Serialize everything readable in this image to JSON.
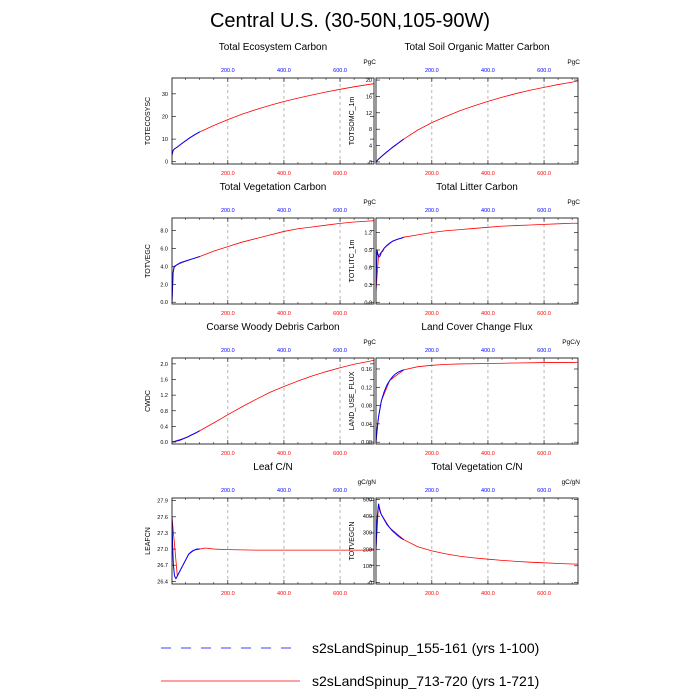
{
  "figure": {
    "title": "Central U.S. (30-50N,105-90W)",
    "series_colors": {
      "short": "#0000ff",
      "long": "#ff0000"
    },
    "legend": [
      {
        "name": "s2sLandSpinup_155-161 (yrs 1-100)",
        "color": "#0000ff",
        "style": "dashed"
      },
      {
        "name": "s2sLandSpinup_713-720 (yrs 1-721)",
        "color": "#ff0000",
        "style": "solid"
      }
    ]
  },
  "chart_data": [
    {
      "type": "line",
      "title": "Total Ecosystem Carbon",
      "ylabel": "TOTECOSYSC",
      "unit": "PgC",
      "xlim": [
        1,
        721
      ],
      "ylim": [
        -1,
        37
      ],
      "yticks": [
        "0",
        "10",
        "20",
        "30"
      ],
      "xticks_bottom": [
        "200.0",
        "400.0",
        "600.0"
      ],
      "xticks_top": [
        "200.0",
        "400.0",
        "600.0"
      ],
      "series": [
        {
          "x": [
            1,
            5,
            10,
            20,
            30,
            40,
            50,
            60,
            70,
            80,
            90,
            100
          ],
          "y": [
            3.0,
            5.0,
            5.7,
            6.5,
            7.5,
            8.4,
            9.3,
            10.2,
            11.0,
            11.8,
            12.5,
            13.2
          ]
        },
        {
          "x": [
            1,
            5,
            10,
            20,
            30,
            40,
            50,
            60,
            70,
            80,
            90,
            100,
            150,
            200,
            250,
            300,
            350,
            400,
            450,
            500,
            550,
            600,
            650,
            700,
            721
          ],
          "y": [
            3.0,
            5.0,
            5.7,
            6.5,
            7.5,
            8.4,
            9.3,
            10.2,
            11.0,
            11.8,
            12.5,
            13.2,
            16.0,
            18.6,
            21.0,
            23.0,
            24.9,
            26.6,
            28.1,
            29.5,
            30.8,
            32.0,
            33.1,
            34.1,
            34.5
          ]
        }
      ]
    },
    {
      "type": "line",
      "title": "Total Soil Organic Matter Carbon",
      "ylabel": "TOTSOMC_1m",
      "unit": "PgC",
      "xlim": [
        1,
        721
      ],
      "ylim": [
        -0.5,
        20.5
      ],
      "yticks": [
        "0",
        "4",
        "8",
        "12",
        "16",
        "20"
      ],
      "xticks_bottom": [
        "200.0",
        "400.0",
        "600.0"
      ],
      "xticks_top": [
        "200.0",
        "400.0",
        "600.0"
      ],
      "series": [
        {
          "x": [
            1,
            5,
            10,
            20,
            30,
            40,
            50,
            60,
            70,
            80,
            90,
            100
          ],
          "y": [
            0.0,
            0.3,
            0.7,
            1.3,
            1.9,
            2.5,
            3.0,
            3.6,
            4.1,
            4.6,
            5.1,
            5.6
          ]
        },
        {
          "x": [
            1,
            10,
            50,
            100,
            150,
            200,
            250,
            300,
            350,
            400,
            450,
            500,
            550,
            600,
            650,
            700,
            721
          ],
          "y": [
            0.0,
            0.7,
            3.0,
            5.6,
            7.8,
            9.6,
            11.1,
            12.5,
            13.7,
            14.8,
            15.8,
            16.7,
            17.5,
            18.2,
            18.9,
            19.5,
            19.8
          ]
        }
      ]
    },
    {
      "type": "line",
      "title": "Total Vegetation Carbon",
      "ylabel": "TOTVEGC",
      "unit": "PgC",
      "xlim": [
        1,
        721
      ],
      "ylim": [
        -0.2,
        9.4
      ],
      "yticks": [
        "0.0",
        "2.0",
        "4.0",
        "6.0",
        "8.0"
      ],
      "xticks_bottom": [
        "200.0",
        "400.0",
        "600.0"
      ],
      "xticks_top": [
        "200.0",
        "400.0",
        "600.0"
      ],
      "series": [
        {
          "x": [
            1,
            3,
            5,
            8,
            10,
            15,
            20,
            30,
            40,
            50,
            60,
            70,
            80,
            90,
            100
          ],
          "y": [
            0.0,
            1.8,
            3.3,
            3.9,
            4.0,
            4.1,
            4.2,
            4.4,
            4.5,
            4.6,
            4.7,
            4.8,
            4.9,
            5.0,
            5.1
          ]
        },
        {
          "x": [
            1,
            5,
            10,
            20,
            50,
            100,
            150,
            200,
            250,
            300,
            350,
            400,
            450,
            500,
            550,
            600,
            650,
            700,
            721
          ],
          "y": [
            0.0,
            3.3,
            4.0,
            4.2,
            4.6,
            5.1,
            5.7,
            6.2,
            6.7,
            7.1,
            7.5,
            7.9,
            8.2,
            8.4,
            8.6,
            8.8,
            8.95,
            9.05,
            9.1
          ]
        }
      ]
    },
    {
      "type": "line",
      "title": "Total Litter Carbon",
      "ylabel": "TOTLITC_1m",
      "unit": "PgC",
      "xlim": [
        1,
        721
      ],
      "ylim": [
        -0.03,
        1.45
      ],
      "yticks": [
        "0.0",
        "0.3",
        "0.6",
        "0.9",
        "1.2"
      ],
      "xticks_bottom": [
        "200.0",
        "400.0",
        "600.0"
      ],
      "xticks_top": [
        "200.0",
        "400.0",
        "600.0"
      ],
      "series": [
        {
          "x": [
            1,
            3,
            5,
            8,
            12,
            16,
            20,
            25,
            30,
            40,
            50,
            60,
            70,
            80,
            90,
            100
          ],
          "y": [
            0.2,
            0.65,
            0.9,
            0.82,
            0.78,
            0.8,
            0.86,
            0.88,
            0.93,
            0.98,
            1.02,
            1.05,
            1.07,
            1.09,
            1.1,
            1.12
          ]
        },
        {
          "x": [
            1,
            10,
            30,
            60,
            100,
            150,
            200,
            250,
            300,
            350,
            400,
            450,
            500,
            550,
            600,
            650,
            700,
            721
          ],
          "y": [
            0.2,
            0.8,
            0.93,
            1.05,
            1.12,
            1.16,
            1.2,
            1.23,
            1.25,
            1.27,
            1.29,
            1.31,
            1.32,
            1.33,
            1.34,
            1.35,
            1.36,
            1.36
          ]
        }
      ]
    },
    {
      "type": "line",
      "title": "Coarse Woody Debris Carbon",
      "ylabel": "CWDC",
      "unit": "PgC",
      "xlim": [
        1,
        721
      ],
      "ylim": [
        -0.05,
        2.15
      ],
      "yticks": [
        "0.0",
        "0.4",
        "0.8",
        "1.2",
        "1.6",
        "2.0"
      ],
      "xticks_bottom": [
        "200.0",
        "400.0",
        "600.0"
      ],
      "xticks_top": [
        "200.0",
        "400.0",
        "600.0"
      ],
      "series": [
        {
          "x": [
            1,
            10,
            20,
            30,
            40,
            50,
            60,
            70,
            80,
            90,
            100
          ],
          "y": [
            0.0,
            0.01,
            0.03,
            0.05,
            0.08,
            0.11,
            0.14,
            0.18,
            0.21,
            0.25,
            0.29
          ]
        },
        {
          "x": [
            1,
            50,
            100,
            150,
            200,
            250,
            300,
            350,
            400,
            450,
            500,
            550,
            600,
            650,
            700,
            721
          ],
          "y": [
            0.0,
            0.11,
            0.29,
            0.49,
            0.7,
            0.9,
            1.09,
            1.27,
            1.42,
            1.56,
            1.69,
            1.8,
            1.9,
            1.99,
            2.06,
            2.09
          ]
        }
      ]
    },
    {
      "type": "line",
      "title": "Land Cover Change Flux",
      "ylabel": "LAND_USE_FLUX",
      "unit": "PgC/y",
      "xlim": [
        1,
        721
      ],
      "ylim": [
        -0.004,
        0.184
      ],
      "yticks": [
        "0.00",
        "0.04",
        "0.08",
        "0.12",
        "0.16"
      ],
      "xticks_bottom": [
        "200.0",
        "400.0",
        "600.0"
      ],
      "xticks_top": [
        "200.0",
        "400.0",
        "600.0"
      ],
      "series": [
        {
          "x": [
            1,
            5,
            10,
            20,
            30,
            40,
            50,
            60,
            70,
            80,
            90,
            100
          ],
          "y": [
            0.0,
            0.03,
            0.055,
            0.09,
            0.11,
            0.125,
            0.135,
            0.143,
            0.149,
            0.153,
            0.156,
            0.158
          ]
        },
        {
          "x": [
            1,
            10,
            20,
            50,
            100,
            150,
            200,
            250,
            300,
            400,
            500,
            600,
            700,
            721
          ],
          "y": [
            0.0,
            0.055,
            0.09,
            0.135,
            0.158,
            0.165,
            0.168,
            0.17,
            0.171,
            0.172,
            0.173,
            0.174,
            0.174,
            0.175
          ]
        }
      ]
    },
    {
      "type": "line",
      "title": "Leaf C/N",
      "ylabel": "LEAFCN",
      "unit": "gC/gN",
      "xlim": [
        1,
        721
      ],
      "ylim": [
        26.35,
        27.95
      ],
      "yticks": [
        "26.4",
        "26.7",
        "27.0",
        "27.3",
        "27.6",
        "27.9"
      ],
      "xticks_bottom": [
        "200.0",
        "400.0",
        "600.0"
      ],
      "xticks_top": [
        "200.0",
        "400.0",
        "600.0"
      ],
      "series": [
        {
          "x": [
            1,
            3,
            6,
            10,
            15,
            20,
            25,
            30,
            35,
            40,
            45,
            50,
            55,
            60,
            65,
            70,
            75,
            80,
            85,
            90,
            95,
            100
          ],
          "y": [
            27.6,
            27.1,
            26.7,
            26.5,
            26.45,
            26.5,
            26.55,
            26.6,
            26.65,
            26.7,
            26.75,
            26.8,
            26.85,
            26.9,
            26.93,
            26.95,
            26.97,
            26.98,
            26.99,
            27.0,
            27.0,
            27.0
          ]
        },
        {
          "x": [
            1,
            20,
            40,
            60,
            80,
            100,
            120,
            150,
            200,
            300,
            400,
            500,
            600,
            700,
            721
          ],
          "y": [
            27.6,
            26.5,
            26.7,
            26.9,
            26.98,
            27.0,
            27.02,
            27.0,
            26.99,
            26.98,
            26.98,
            26.98,
            26.98,
            26.98,
            26.98
          ]
        }
      ]
    },
    {
      "type": "line",
      "title": "Total Vegetation C/N",
      "ylabel": "TOTVEGCN",
      "unit": "gC/gN",
      "xlim": [
        1,
        721
      ],
      "ylim": [
        -10,
        510
      ],
      "yticks": [
        "0",
        "100",
        "200",
        "300",
        "400",
        "500"
      ],
      "xticks_bottom": [
        "200.0",
        "400.0",
        "600.0"
      ],
      "xticks_top": [
        "200.0",
        "400.0",
        "600.0"
      ],
      "series": [
        {
          "x": [
            1,
            5,
            10,
            15,
            20,
            30,
            40,
            50,
            60,
            70,
            80,
            90,
            100
          ],
          "y": [
            200,
            380,
            475,
            430,
            410,
            380,
            350,
            330,
            310,
            295,
            280,
            268,
            258
          ]
        },
        {
          "x": [
            1,
            10,
            20,
            50,
            100,
            150,
            200,
            250,
            300,
            350,
            400,
            450,
            500,
            550,
            600,
            650,
            700,
            721
          ],
          "y": [
            200,
            475,
            410,
            330,
            258,
            215,
            190,
            172,
            158,
            148,
            140,
            133,
            127,
            122,
            118,
            114,
            111,
            110
          ]
        }
      ]
    }
  ]
}
